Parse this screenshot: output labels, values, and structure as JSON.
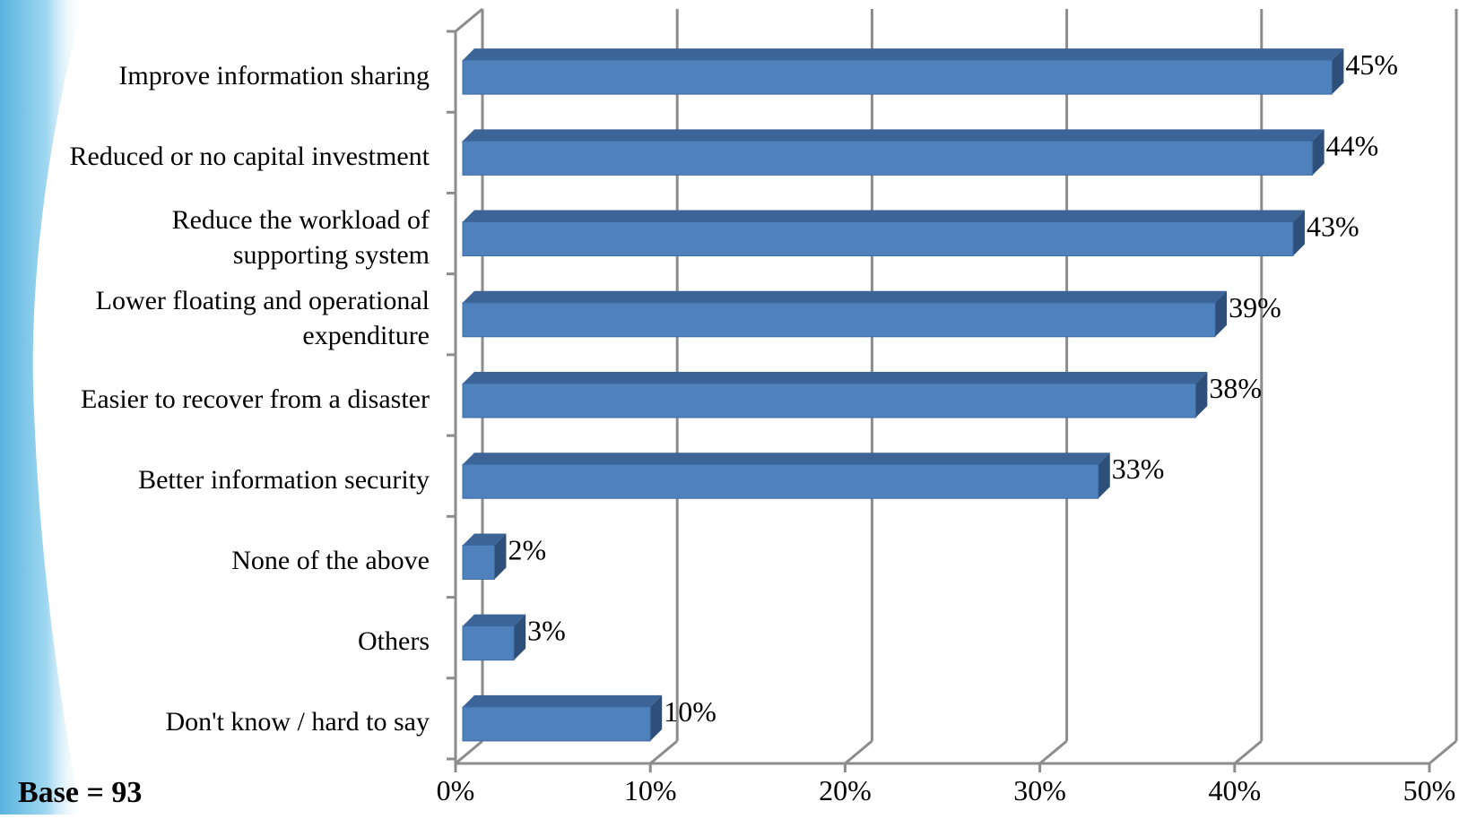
{
  "chart_data": {
    "type": "bar",
    "orientation": "horizontal",
    "three_d": true,
    "categories": [
      "Improve information sharing",
      "Reduced or no capital investment",
      "Reduce the workload of\nsupporting system",
      "Lower floating and operational\nexpenditure",
      "Easier to recover from a disaster",
      "Better information security",
      "None of the above",
      "Others",
      "Don't know / hard to say"
    ],
    "values": [
      45,
      44,
      43,
      39,
      38,
      33,
      2,
      3,
      10
    ],
    "data_labels": [
      "45%",
      "44%",
      "43%",
      "39%",
      "38%",
      "33%",
      "2%",
      "3%",
      "10%"
    ],
    "x_ticks": [
      "0%",
      "10%",
      "20%",
      "30%",
      "40%",
      "50%"
    ],
    "xlim": [
      0,
      50
    ],
    "grid": "vertical",
    "bar_color": "#4f81bd",
    "bar_top_color": "#3c6496",
    "bar_side_color": "#2e4f7a",
    "gridline_color": "#8c8c8c"
  },
  "footer": {
    "base_note": "Base = 93"
  }
}
